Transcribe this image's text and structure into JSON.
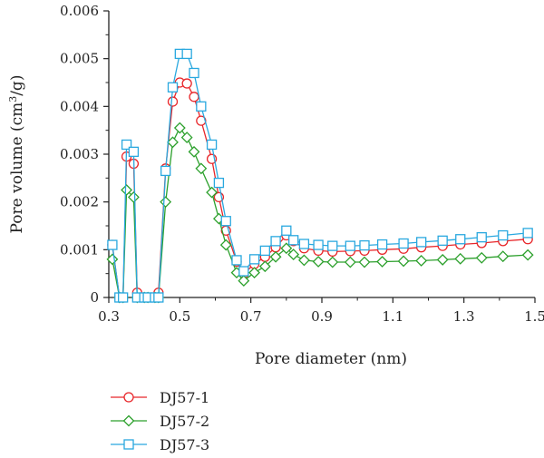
{
  "chart_data": {
    "type": "line",
    "xlabel": "Pore diameter (nm)",
    "ylabel_main": "Pore volume (cm",
    "ylabel_sup": "3",
    "ylabel_tail": "/g)",
    "xlim": [
      0.3,
      1.5
    ],
    "ylim": [
      0,
      0.006
    ],
    "x_ticks": [
      0.3,
      0.5,
      0.7,
      0.9,
      1.1,
      1.3,
      1.5
    ],
    "x_tick_labels": [
      "0.3",
      "0.5",
      "0.7",
      "0.9",
      "1.1",
      "1.3",
      "1.5"
    ],
    "y_ticks": [
      0,
      0.001,
      0.002,
      0.003,
      0.004,
      0.005,
      0.006
    ],
    "y_tick_labels": [
      "0",
      "0.001",
      "0.002",
      "0.003",
      "0.004",
      "0.005",
      "0.006"
    ],
    "grid": false,
    "legend_position": "bottom-left",
    "series": [
      {
        "name": "DJ57-1",
        "color": "#e8262a",
        "marker": "circle",
        "x": [
          0.31,
          0.33,
          0.34,
          0.35,
          0.37,
          0.38,
          0.4,
          0.41,
          0.43,
          0.44,
          0.46,
          0.48,
          0.5,
          0.52,
          0.54,
          0.56,
          0.59,
          0.61,
          0.63,
          0.66,
          0.68,
          0.71,
          0.74,
          0.77,
          0.8,
          0.82,
          0.85,
          0.89,
          0.93,
          0.98,
          1.02,
          1.07,
          1.13,
          1.18,
          1.24,
          1.29,
          1.35,
          1.41,
          1.48
        ],
        "y": [
          0.0011,
          0.0,
          0.0,
          0.00295,
          0.0028,
          0.0001,
          0.0,
          0.0,
          0.0,
          0.0001,
          0.0027,
          0.0041,
          0.0045,
          0.00448,
          0.0042,
          0.0037,
          0.0029,
          0.0021,
          0.0014,
          0.00075,
          0.0005,
          0.0007,
          0.00085,
          0.00105,
          0.0013,
          0.00118,
          0.00103,
          0.00098,
          0.00096,
          0.00097,
          0.00098,
          0.001,
          0.00102,
          0.00105,
          0.00108,
          0.00111,
          0.00114,
          0.00118,
          0.00122
        ]
      },
      {
        "name": "DJ57-2",
        "color": "#2ca02c",
        "marker": "diamond",
        "x": [
          0.31,
          0.33,
          0.34,
          0.35,
          0.37,
          0.38,
          0.4,
          0.41,
          0.43,
          0.44,
          0.46,
          0.48,
          0.5,
          0.52,
          0.54,
          0.56,
          0.59,
          0.61,
          0.63,
          0.66,
          0.68,
          0.71,
          0.74,
          0.77,
          0.8,
          0.82,
          0.85,
          0.89,
          0.93,
          0.98,
          1.02,
          1.07,
          1.13,
          1.18,
          1.24,
          1.29,
          1.35,
          1.41,
          1.48
        ],
        "y": [
          0.0008,
          0.0,
          0.0,
          0.00225,
          0.0021,
          0.0,
          0.0,
          0.0,
          0.0,
          0.0,
          0.002,
          0.00325,
          0.00355,
          0.00335,
          0.00305,
          0.0027,
          0.0022,
          0.00165,
          0.0011,
          0.00052,
          0.00035,
          0.00052,
          0.00065,
          0.00085,
          0.00103,
          0.0009,
          0.00078,
          0.00075,
          0.00074,
          0.00074,
          0.00074,
          0.00075,
          0.00076,
          0.00077,
          0.00079,
          0.00081,
          0.00083,
          0.00086,
          0.00089
        ]
      },
      {
        "name": "DJ57-3",
        "color": "#29a8df",
        "marker": "square",
        "x": [
          0.31,
          0.33,
          0.34,
          0.35,
          0.37,
          0.38,
          0.4,
          0.41,
          0.43,
          0.44,
          0.46,
          0.48,
          0.5,
          0.52,
          0.54,
          0.56,
          0.59,
          0.61,
          0.63,
          0.66,
          0.68,
          0.71,
          0.74,
          0.77,
          0.8,
          0.82,
          0.85,
          0.89,
          0.93,
          0.98,
          1.02,
          1.07,
          1.13,
          1.18,
          1.24,
          1.29,
          1.35,
          1.41,
          1.48
        ],
        "y": [
          0.0011,
          0.0,
          0.0,
          0.0032,
          0.00305,
          0.0,
          0.0,
          0.0,
          0.0,
          0.0,
          0.00265,
          0.0044,
          0.0051,
          0.0051,
          0.0047,
          0.004,
          0.0032,
          0.0024,
          0.0016,
          0.00078,
          0.00055,
          0.0008,
          0.00098,
          0.00118,
          0.0014,
          0.0012,
          0.00112,
          0.0011,
          0.00108,
          0.00108,
          0.00109,
          0.00111,
          0.00113,
          0.00116,
          0.00119,
          0.00122,
          0.00126,
          0.0013,
          0.00135
        ]
      }
    ]
  }
}
